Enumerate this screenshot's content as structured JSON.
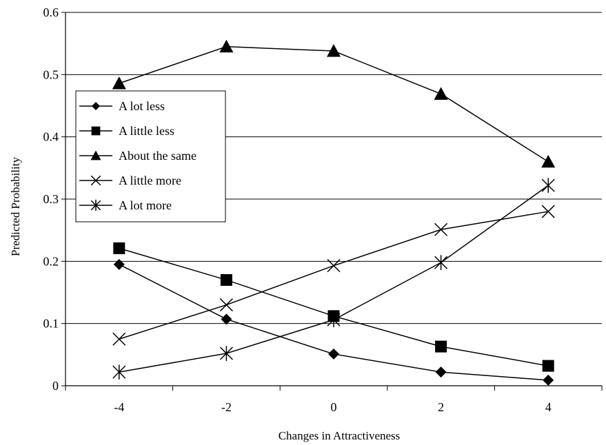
{
  "chart_data": {
    "type": "line",
    "title": "",
    "xlabel": "Changes in Attractiveness",
    "ylabel": "Predicted Probability",
    "x": [
      -4,
      -2,
      0,
      2,
      4
    ],
    "x_tick_labels": [
      "-4",
      "-2",
      "0",
      "2",
      "4"
    ],
    "ylim": [
      0,
      0.6
    ],
    "y_ticks": [
      0,
      0.1,
      0.2,
      0.3,
      0.4,
      0.5,
      0.6
    ],
    "y_tick_labels": [
      "0",
      "0.1",
      "0.2",
      "0.3",
      "0.4",
      "0.5",
      "0.6"
    ],
    "grid": "horizontal",
    "legend_position": "left",
    "series": [
      {
        "name": "A lot less",
        "marker": "diamond",
        "values": [
          0.195,
          0.107,
          0.051,
          0.022,
          0.009
        ]
      },
      {
        "name": "A little less",
        "marker": "square",
        "values": [
          0.221,
          0.17,
          0.112,
          0.063,
          0.032
        ]
      },
      {
        "name": "About the same",
        "marker": "triangle",
        "values": [
          0.486,
          0.545,
          0.538,
          0.469,
          0.36
        ]
      },
      {
        "name": "A little more",
        "marker": "x",
        "values": [
          0.075,
          0.13,
          0.193,
          0.251,
          0.28
        ]
      },
      {
        "name": "A lot more",
        "marker": "star",
        "values": [
          0.022,
          0.052,
          0.106,
          0.198,
          0.322
        ]
      }
    ]
  }
}
